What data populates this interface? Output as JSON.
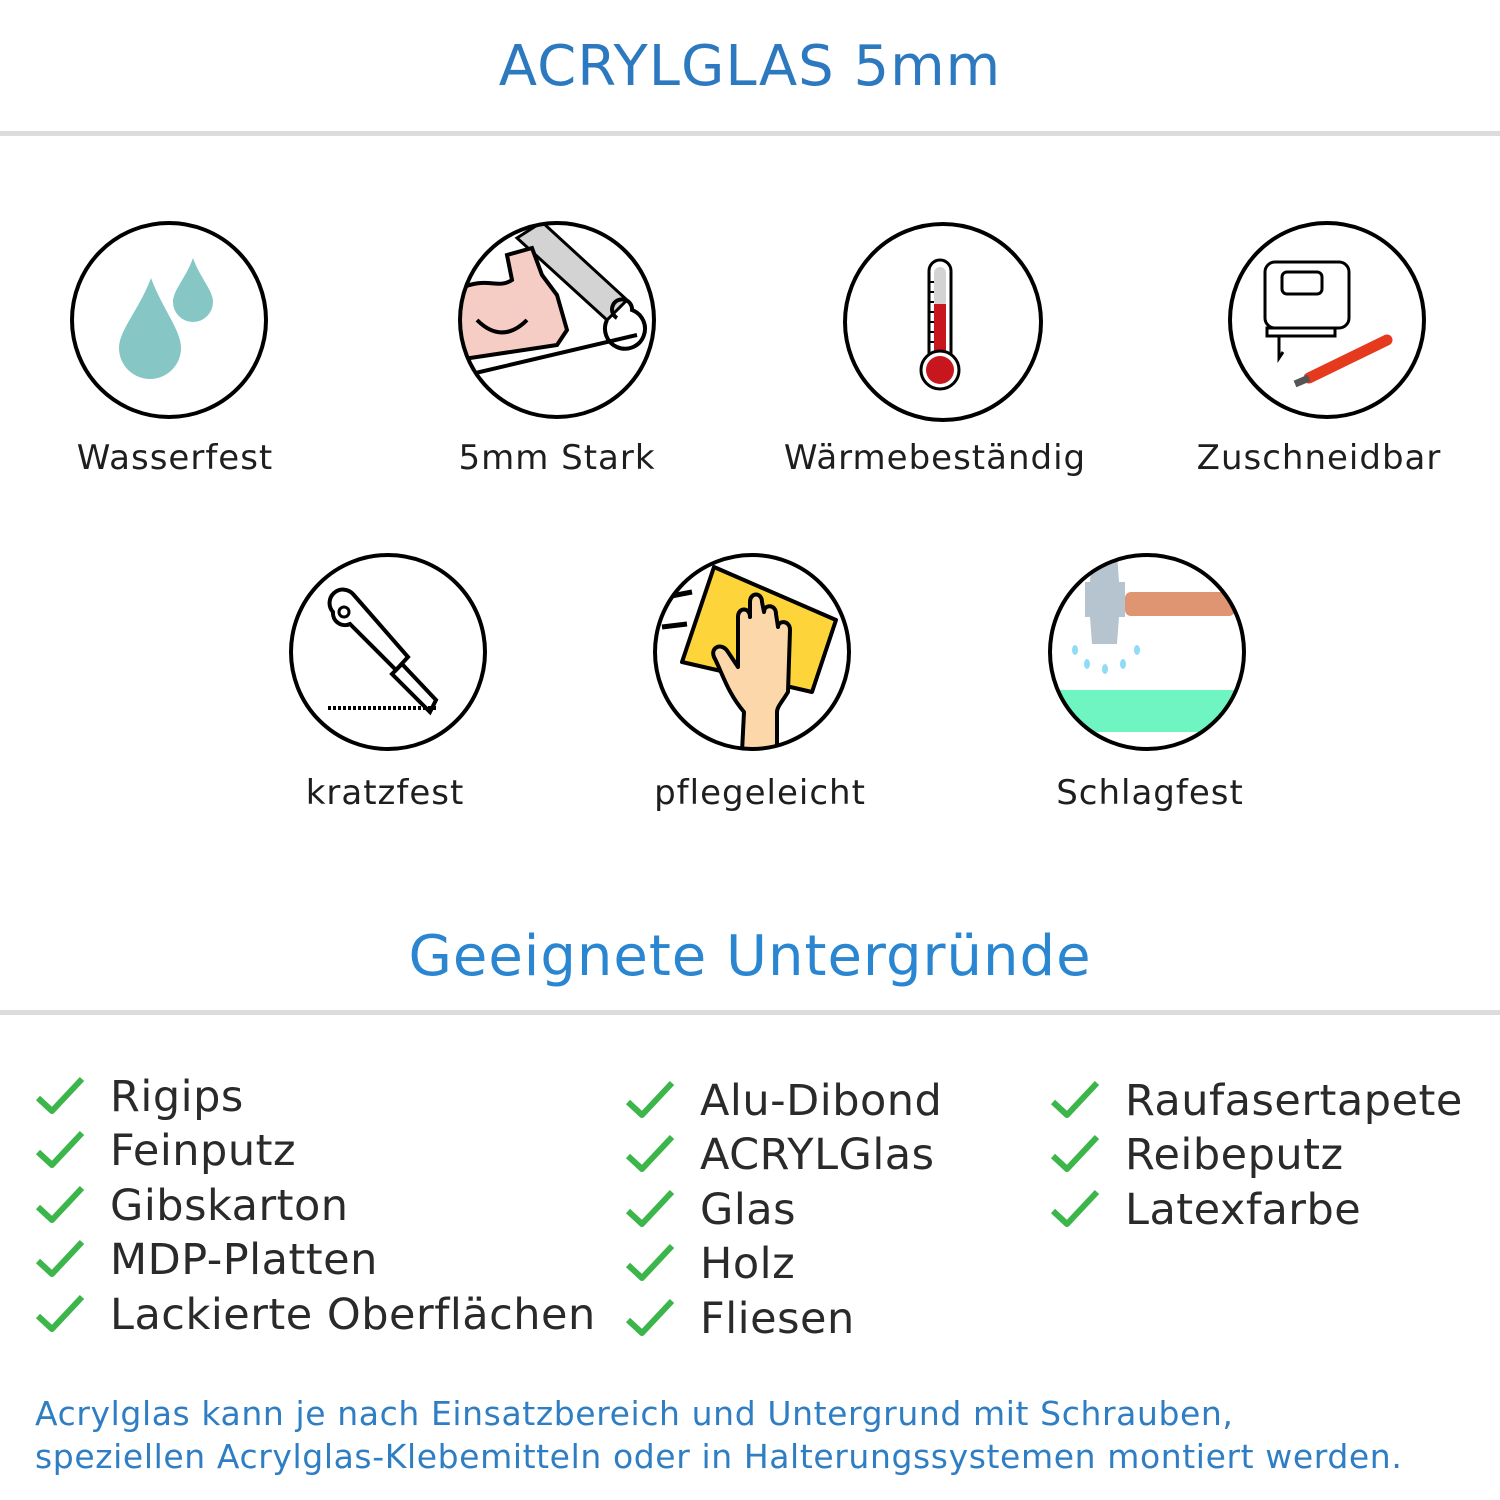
{
  "header": {
    "title": "ACRYLGLAS 5mm"
  },
  "features": [
    {
      "label": "Wasserfest",
      "icon": "water-drops-icon"
    },
    {
      "label": "5mm Stark",
      "icon": "strong-arm-icon"
    },
    {
      "label": "Wärmebeständig",
      "icon": "thermometer-icon"
    },
    {
      "label": "Zuschneidbar",
      "icon": "jigsaw-cutter-icon"
    },
    {
      "label": "kratzfest",
      "icon": "box-cutter-icon"
    },
    {
      "label": "pflegeleicht",
      "icon": "cleaning-hand-icon"
    },
    {
      "label": "Schlagfest",
      "icon": "hammer-icon"
    }
  ],
  "surfaces": {
    "title": "Geeignete Untergründe",
    "columns": [
      [
        "Rigips",
        "Feinputz",
        "Gibskarton",
        "MDP-Platten",
        "Lackierte Oberflächen"
      ],
      [
        "Alu-Dibond",
        "ACRYLGlas",
        "Glas",
        "Holz",
        "Fliesen"
      ],
      [
        "Raufasertapete",
        "Reibeputz",
        "Latexfarbe"
      ]
    ]
  },
  "footer": {
    "line1": "Acrylglas kann je nach Einsatzbereich und Untergrund mit Schrauben,",
    "line2": "speziellen Acrylglas-Klebemitteln oder in Halterungssystemen montiert werden."
  },
  "colors": {
    "title": "#2d79c0",
    "check": "#3cb54a",
    "footer": "#2f7ec4"
  }
}
